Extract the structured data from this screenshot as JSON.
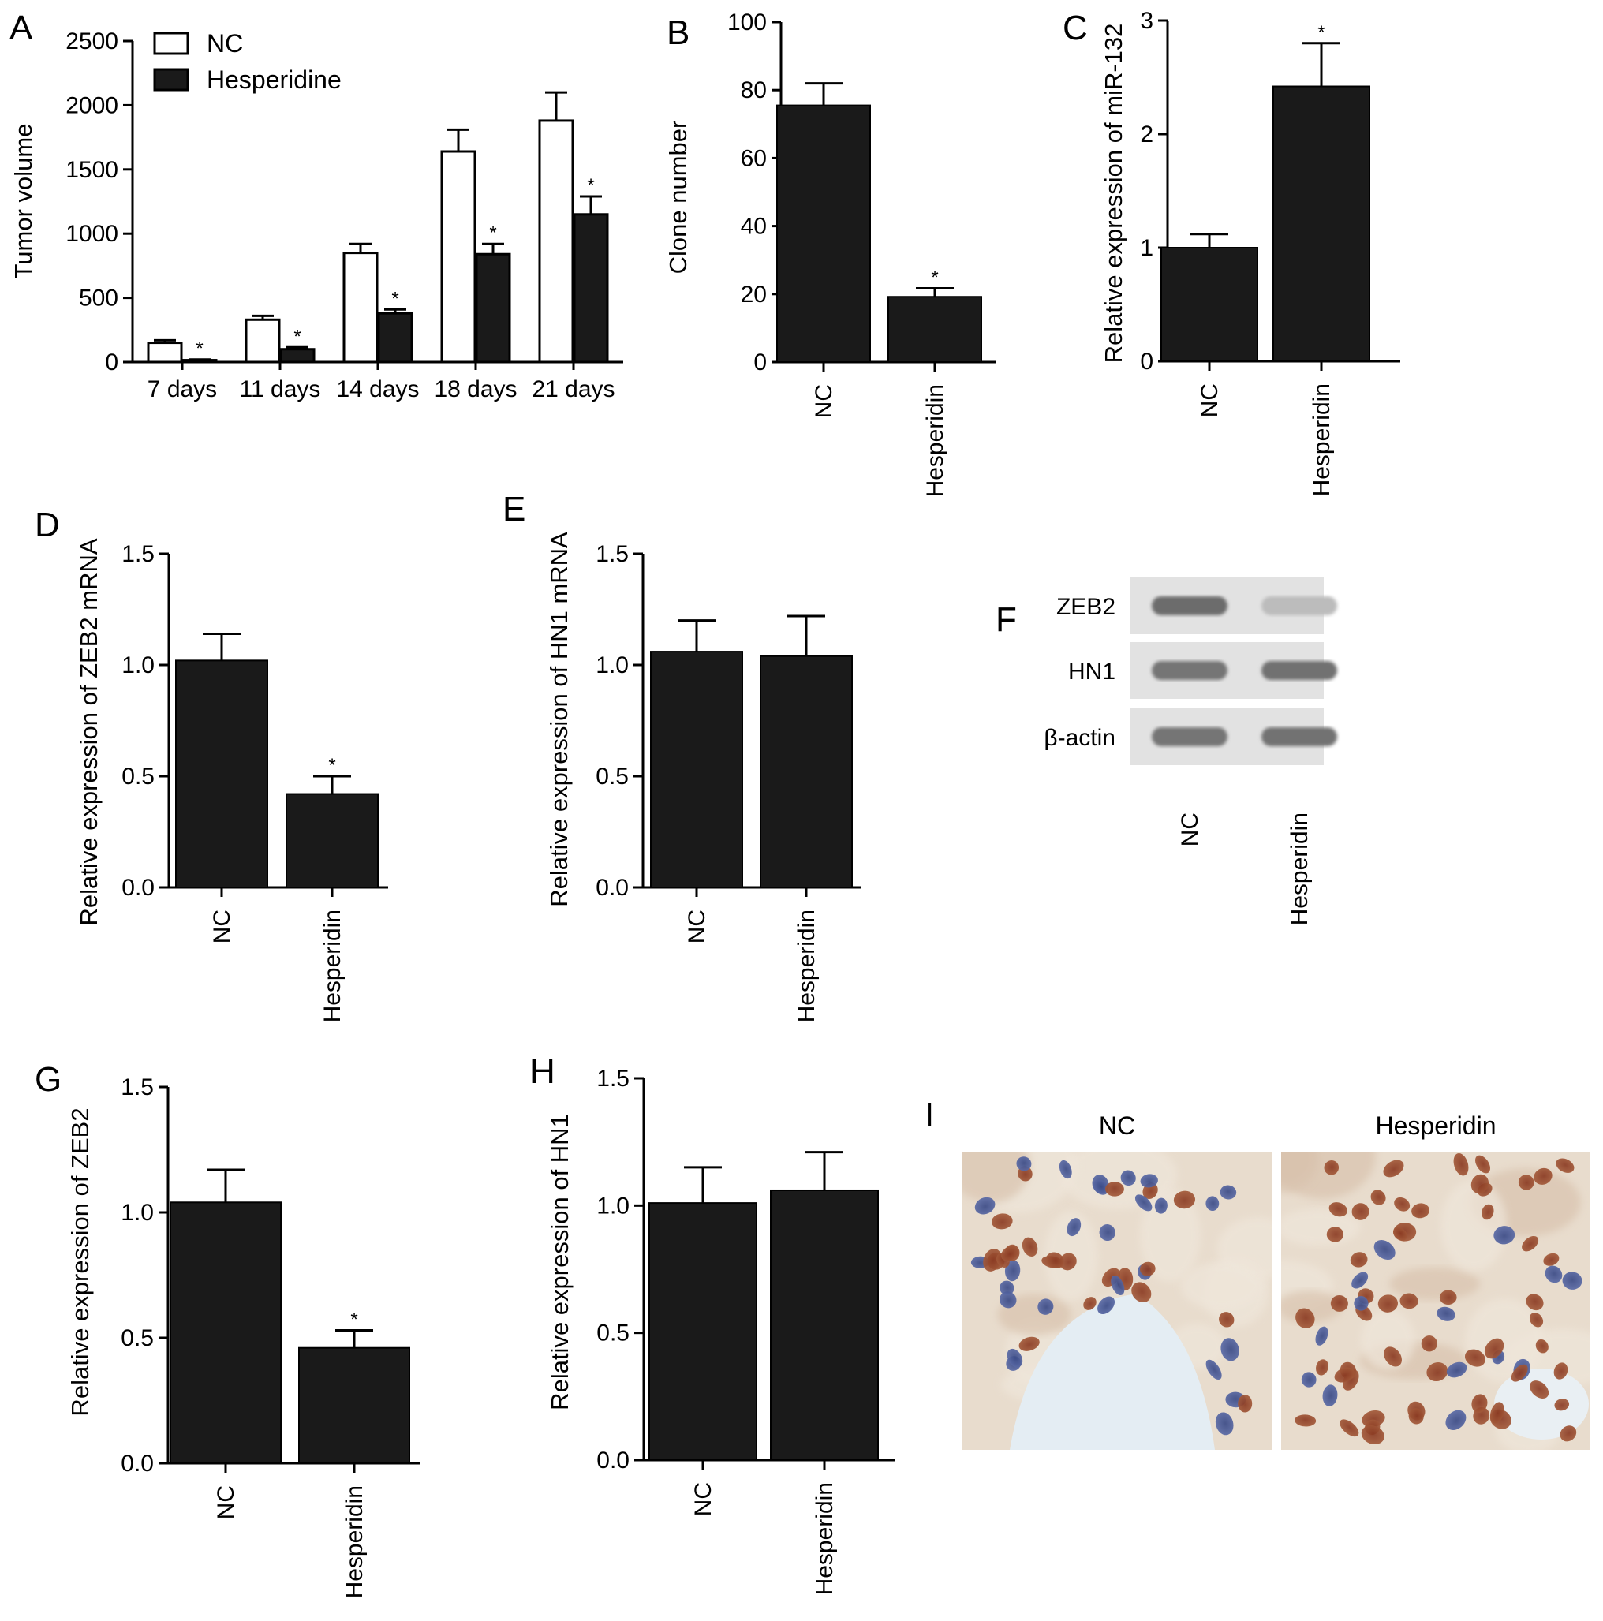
{
  "chart_data": [
    {
      "panel": "A",
      "type": "bar",
      "ylabel": "Tumor volume",
      "categories": [
        "7 days",
        "11 days",
        "14 days",
        "18 days",
        "21 days"
      ],
      "ylim": [
        0,
        2500
      ],
      "yticks": [
        0,
        500,
        1000,
        1500,
        2000,
        2500
      ],
      "series": [
        {
          "name": "NC",
          "values": [
            150,
            330,
            850,
            1640,
            1880
          ],
          "errors": [
            20,
            30,
            70,
            170,
            220
          ],
          "color": "#ffffff"
        },
        {
          "name": "Hesperidine",
          "values": [
            15,
            100,
            380,
            840,
            1150
          ],
          "errors": [
            5,
            15,
            30,
            80,
            140
          ],
          "color": "#1a1a1a"
        }
      ],
      "significance": [
        "",
        "",
        "",
        "",
        ""
      ],
      "significance_series2": [
        "*",
        "*",
        "*",
        "*",
        "*"
      ],
      "legend": "top-left"
    },
    {
      "panel": "B",
      "type": "bar",
      "ylabel": "Clone number",
      "categories": [
        "NC",
        "Hesperidin"
      ],
      "values": [
        75.5,
        19.2
      ],
      "errors": [
        6.5,
        2.5
      ],
      "significance": [
        "",
        "*"
      ],
      "ylim": [
        0,
        100
      ],
      "yticks": [
        0,
        20,
        40,
        60,
        80,
        100
      ]
    },
    {
      "panel": "C",
      "type": "bar",
      "ylabel": "Relative expression of miR-132",
      "categories": [
        "NC",
        "Hesperidin"
      ],
      "values": [
        1.0,
        2.42
      ],
      "errors": [
        0.12,
        0.38
      ],
      "significance": [
        "",
        "*"
      ],
      "ylim": [
        0,
        3
      ],
      "yticks": [
        0,
        1,
        2,
        3
      ]
    },
    {
      "panel": "D",
      "type": "bar",
      "ylabel": "Relative expression of ZEB2 mRNA",
      "categories": [
        "NC",
        "Hesperidin"
      ],
      "values": [
        1.02,
        0.42
      ],
      "errors": [
        0.12,
        0.08
      ],
      "significance": [
        "",
        "*"
      ],
      "ylim": [
        0,
        1.5
      ],
      "yticks": [
        "0.0",
        "0.5",
        "1.0",
        "1.5"
      ]
    },
    {
      "panel": "E",
      "type": "bar",
      "ylabel": "Relative expression of HN1 mRNA",
      "categories": [
        "NC",
        "Hesperidin"
      ],
      "values": [
        1.06,
        1.04
      ],
      "errors": [
        0.14,
        0.18
      ],
      "significance": [
        "",
        ""
      ],
      "ylim": [
        0,
        1.5
      ],
      "yticks": [
        "0.0",
        "0.5",
        "1.0",
        "1.5"
      ]
    },
    {
      "panel": "G",
      "type": "bar",
      "ylabel": "Relative expression of ZEB2",
      "categories": [
        "NC",
        "Hesperidin"
      ],
      "values": [
        1.04,
        0.46
      ],
      "errors": [
        0.13,
        0.07
      ],
      "significance": [
        "",
        "*"
      ],
      "ylim": [
        0,
        1.5
      ],
      "yticks": [
        "0.0",
        "0.5",
        "1.0",
        "1.5"
      ]
    },
    {
      "panel": "H",
      "type": "bar",
      "ylabel": "Relative expression of HN1",
      "categories": [
        "NC",
        "Hesperidin"
      ],
      "values": [
        1.01,
        1.06
      ],
      "errors": [
        0.14,
        0.15
      ],
      "significance": [
        "",
        ""
      ],
      "ylim": [
        0,
        1.5
      ],
      "yticks": [
        "0.0",
        "0.5",
        "1.0",
        "1.5"
      ]
    }
  ],
  "blot": {
    "panel": "F",
    "rows": [
      {
        "label": "ZEB2",
        "intensities": [
          0.78,
          0.25
        ]
      },
      {
        "label": "HN1",
        "intensities": [
          0.72,
          0.75
        ]
      },
      {
        "label": "β-actin",
        "intensities": [
          0.72,
          0.74
        ]
      }
    ],
    "lanes": [
      "NC",
      "Hesperidin"
    ]
  },
  "histology": {
    "panel": "I",
    "images": [
      {
        "label": "NC",
        "stain_level": 0.35
      },
      {
        "label": "Hesperidin",
        "stain_level": 0.8
      }
    ]
  }
}
